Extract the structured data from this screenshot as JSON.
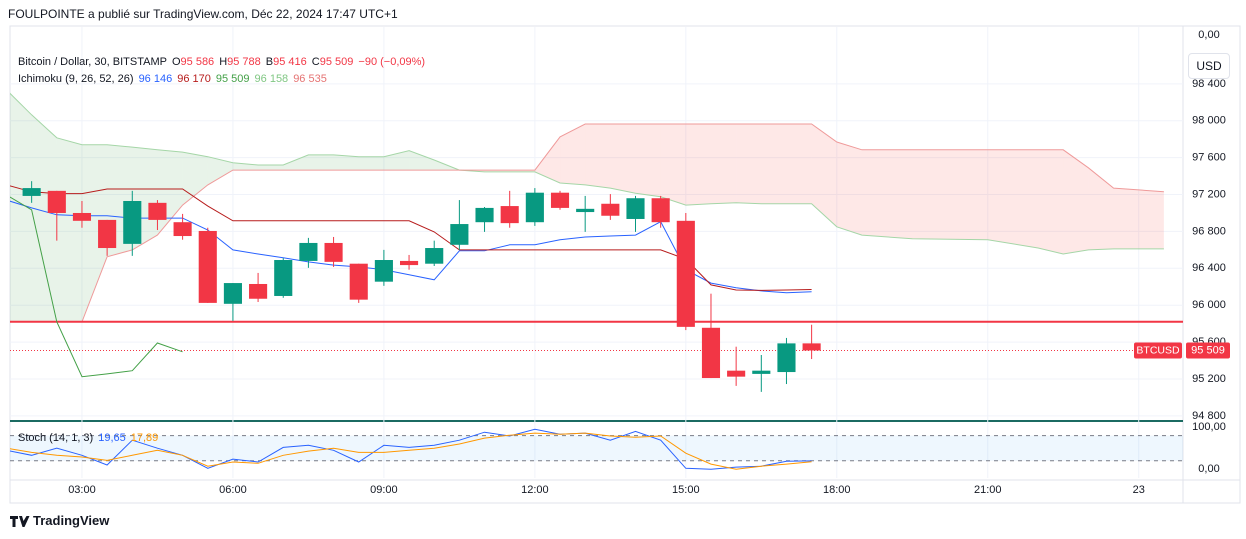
{
  "header": {
    "author_line": "FOULPOINTE a publié sur TradingView.com, Déc 22, 2024 17:47 UTC+1",
    "symbol_line": "Bitcoin / Dollar, 30, BITSTAMP",
    "ohlc": [
      {
        "key": "O",
        "value": "95 586"
      },
      {
        "key": "H",
        "value": "95 788"
      },
      {
        "key": "B",
        "value": "95 416"
      },
      {
        "key": "C",
        "value": "95 509"
      }
    ],
    "change": "−90 (−0,09%)",
    "ichimoku": {
      "title": "Ichimoku (9, 26, 52, 26)",
      "values": [
        {
          "text": "96 146",
          "color": "#2962ff"
        },
        {
          "text": "96 170",
          "color": "#b71c1c"
        },
        {
          "text": "95 509",
          "color": "#43a047"
        },
        {
          "text": "96 158",
          "color": "#81c784"
        },
        {
          "text": "96 535",
          "color": "#e57373"
        }
      ]
    },
    "stoch": {
      "title": "Stoch (14, 1, 3)",
      "values": [
        {
          "text": "19,65",
          "color": "#2962ff"
        },
        {
          "text": "17,89",
          "color": "#ff9800"
        }
      ]
    },
    "currency": "USD",
    "top_label": "0,00",
    "brand": "TradingView"
  },
  "chart_data": [
    {
      "type": "candlestick",
      "x": [
        2.0,
        2.5,
        3.0,
        3.5,
        4.0,
        4.5,
        5.0,
        5.5,
        6.0,
        6.5,
        7.0,
        7.5,
        8.0,
        8.5,
        9.0,
        9.5,
        10.0,
        10.5,
        11.0,
        11.5,
        12.0,
        12.5,
        13.0,
        13.5,
        14.0,
        14.5,
        15.0,
        15.5,
        16.0,
        16.5,
        17.0,
        17.5
      ],
      "open": [
        97185,
        97240,
        97000,
        96925,
        96665,
        97110,
        96900,
        96805,
        96015,
        96230,
        96100,
        96480,
        96675,
        96450,
        96255,
        96480,
        96450,
        96655,
        96900,
        97075,
        96900,
        97220,
        97010,
        97100,
        96935,
        97160,
        96915,
        95755,
        95290,
        95255,
        95275,
        95586
      ],
      "high": [
        97345,
        97240,
        97130,
        96925,
        97240,
        97140,
        96990,
        96840,
        96240,
        96350,
        96510,
        96730,
        96740,
        96450,
        96600,
        96545,
        96700,
        97140,
        97065,
        97240,
        97270,
        97240,
        97185,
        97205,
        97185,
        97185,
        97000,
        96125,
        95550,
        95460,
        95645,
        95788
      ],
      "low": [
        97110,
        96700,
        96840,
        96535,
        96535,
        96815,
        96710,
        96025,
        95830,
        96035,
        96080,
        96405,
        96415,
        96025,
        96210,
        96385,
        96425,
        96600,
        96795,
        96840,
        96860,
        97035,
        96795,
        96925,
        96795,
        96840,
        95730,
        95210,
        95125,
        95060,
        95145,
        95416
      ],
      "close": [
        97270,
        97000,
        96915,
        96620,
        97130,
        96925,
        96750,
        96025,
        96240,
        96070,
        96490,
        96675,
        96470,
        96060,
        96490,
        96435,
        96620,
        96880,
        97055,
        96890,
        97220,
        97055,
        97045,
        96970,
        97160,
        96900,
        95765,
        95210,
        95225,
        95290,
        95586,
        95509
      ],
      "up_color": "#089981",
      "down_color": "#f23645",
      "xlim": [
        1.57,
        24.88
      ],
      "xticks": [
        {
          "value": 3,
          "label": "03:00"
        },
        {
          "value": 6,
          "label": "06:00"
        },
        {
          "value": 9,
          "label": "09:00"
        },
        {
          "value": 12,
          "label": "12:00"
        },
        {
          "value": 15,
          "label": "15:00"
        },
        {
          "value": 18,
          "label": "18:00"
        },
        {
          "value": 21,
          "label": "21:00"
        },
        {
          "value": 24,
          "label": "23"
        }
      ],
      "ylim": [
        94755,
        98800
      ],
      "yticks": [
        {
          "value": 94800,
          "label": "94 800"
        },
        {
          "value": 95200,
          "label": "95 200"
        },
        {
          "value": 95600,
          "label": "95 600"
        },
        {
          "value": 96000,
          "label": "96 000"
        },
        {
          "value": 96400,
          "label": "96 400"
        },
        {
          "value": 96800,
          "label": "96 800"
        },
        {
          "value": 97200,
          "label": "97 200"
        },
        {
          "value": 97600,
          "label": "97 600"
        },
        {
          "value": 98000,
          "label": "98 000"
        },
        {
          "value": 98400,
          "label": "98 400"
        }
      ],
      "grid": true,
      "cloud": {
        "x": [
          1.5,
          2.0,
          2.5,
          3.0,
          3.5,
          4.0,
          4.5,
          5.0,
          5.5,
          6.0,
          6.5,
          7.0,
          7.5,
          8.0,
          8.5,
          9.0,
          9.5,
          10.0,
          10.5,
          11.0,
          11.5,
          12.0,
          12.5,
          13.0,
          13.5,
          14.0,
          14.5,
          15.0,
          15.5,
          16.0,
          16.5,
          17.0,
          17.5,
          18.0,
          18.5,
          19.5,
          21.0,
          22.0,
          22.5,
          23.0,
          23.5,
          24.0,
          24.5
        ],
        "span_a": {
          "color": "#a5d6a7",
          "values": [
            98335,
            98065,
            97815,
            97740,
            97740,
            97715,
            97685,
            97660,
            97610,
            97545,
            97520,
            97520,
            97630,
            97630,
            97610,
            97610,
            97675,
            97575,
            97465,
            97445,
            97445,
            97445,
            97325,
            97305,
            97270,
            97215,
            97175,
            97085,
            97100,
            97110,
            97100,
            97100,
            97100,
            96850,
            96760,
            96720,
            96710,
            96620,
            96555,
            96600,
            96610,
            96610,
            96610
          ]
        },
        "span_b": {
          "color": "#ef9a9a",
          "values": [
            95820,
            95820,
            95820,
            95820,
            96525,
            96600,
            96760,
            97085,
            97305,
            97465,
            97465,
            97465,
            97465,
            97465,
            97465,
            97465,
            97465,
            97465,
            97465,
            97465,
            97465,
            97465,
            97825,
            97965,
            97965,
            97965,
            97965,
            97965,
            97965,
            97965,
            97965,
            97965,
            97965,
            97770,
            97685,
            97685,
            97685,
            97685,
            97685,
            97490,
            97270,
            97250,
            97230
          ]
        },
        "up_fill": "rgba(67,160,71,0.12)",
        "down_fill": "rgba(244,67,54,0.12)"
      },
      "lines": [
        {
          "color": "#2962ff",
          "x": [
            1.5,
            2.0,
            2.5,
            3.0,
            3.5,
            4.0,
            4.5,
            5.0,
            5.5,
            6.0,
            6.5,
            7.0,
            7.5,
            8.0,
            8.5,
            9.0,
            9.5,
            10.0,
            10.5,
            11.0,
            11.5,
            12.0,
            12.5,
            13.0,
            13.5,
            14.0,
            14.5,
            15.0,
            15.5,
            16.0,
            16.5,
            17.0,
            17.5
          ],
          "values": [
            97140,
            97055,
            96980,
            96970,
            96970,
            96945,
            96945,
            96945,
            96815,
            96600,
            96555,
            96515,
            96470,
            96435,
            96415,
            96385,
            96330,
            96275,
            96590,
            96590,
            96655,
            96655,
            96710,
            96740,
            96750,
            96760,
            96905,
            96385,
            96240,
            96190,
            96155,
            96135,
            96146
          ]
        },
        {
          "color": "#b71c1c",
          "x": [
            1.5,
            2.0,
            2.5,
            3.0,
            3.5,
            4.0,
            4.5,
            5.0,
            5.5,
            6.0,
            6.5,
            7.0,
            7.5,
            8.0,
            8.5,
            9.0,
            9.5,
            10.0,
            10.5,
            11.0,
            11.5,
            12.0,
            12.5,
            13.0,
            13.5,
            14.0,
            14.5,
            15.0,
            15.5,
            16.0,
            16.5,
            17.0,
            17.5
          ],
          "values": [
            97305,
            97230,
            97210,
            97210,
            97260,
            97260,
            97260,
            97260,
            97075,
            96915,
            96915,
            96915,
            96915,
            96915,
            96915,
            96915,
            96915,
            96795,
            96600,
            96600,
            96600,
            96600,
            96600,
            96600,
            96600,
            96600,
            96600,
            96500,
            96220,
            96165,
            96160,
            96165,
            96170
          ]
        },
        {
          "color": "#43a047",
          "x": [
            1.5,
            2.0,
            2.5,
            3.0,
            3.5,
            4.0,
            4.5,
            5.0
          ],
          "values": [
            97195,
            97035,
            95820,
            95225,
            95255,
            95290,
            95590,
            95495
          ]
        }
      ],
      "hlines": [
        {
          "value": 95820,
          "color": "#f23645"
        }
      ],
      "last_price": {
        "value": 95509,
        "label": "95 509",
        "symbol": "BTCUSD",
        "color": "#f23645"
      }
    },
    {
      "type": "line",
      "x": [
        1.5,
        2.0,
        2.5,
        3.0,
        3.5,
        4.0,
        4.5,
        5.0,
        5.5,
        6.0,
        6.5,
        7.0,
        7.5,
        8.0,
        8.5,
        9.0,
        9.5,
        10.0,
        10.5,
        11.0,
        11.5,
        12.0,
        12.5,
        13.0,
        13.5,
        14.0,
        14.5,
        15.0,
        15.5,
        16.0,
        16.5,
        17.0,
        17.5
      ],
      "series": [
        {
          "color": "#2962ff",
          "values": [
            45,
            33,
            50,
            33,
            10,
            69,
            50,
            33,
            2,
            24,
            17,
            52,
            57,
            45,
            17,
            57,
            52,
            57,
            69,
            88,
            79,
            95,
            83,
            86,
            69,
            90,
            69,
            2,
            0,
            5,
            7,
            19,
            19.65
          ]
        },
        {
          "color": "#ff9800",
          "values": [
            50,
            40,
            33,
            29,
            21,
            33,
            45,
            33,
            7,
            17,
            14,
            33,
            43,
            50,
            40,
            40,
            45,
            50,
            60,
            74,
            81,
            86,
            83,
            86,
            79,
            76,
            79,
            38,
            12,
            0,
            7,
            12,
            17.89
          ]
        }
      ],
      "ylim": [
        -21,
        110
      ],
      "yticks": [
        {
          "value": 0,
          "label": "0,00"
        },
        {
          "value": 100,
          "label": "100,00"
        }
      ],
      "bands": [
        20,
        80
      ],
      "band_color": "rgba(33,150,243,0.08)"
    }
  ]
}
